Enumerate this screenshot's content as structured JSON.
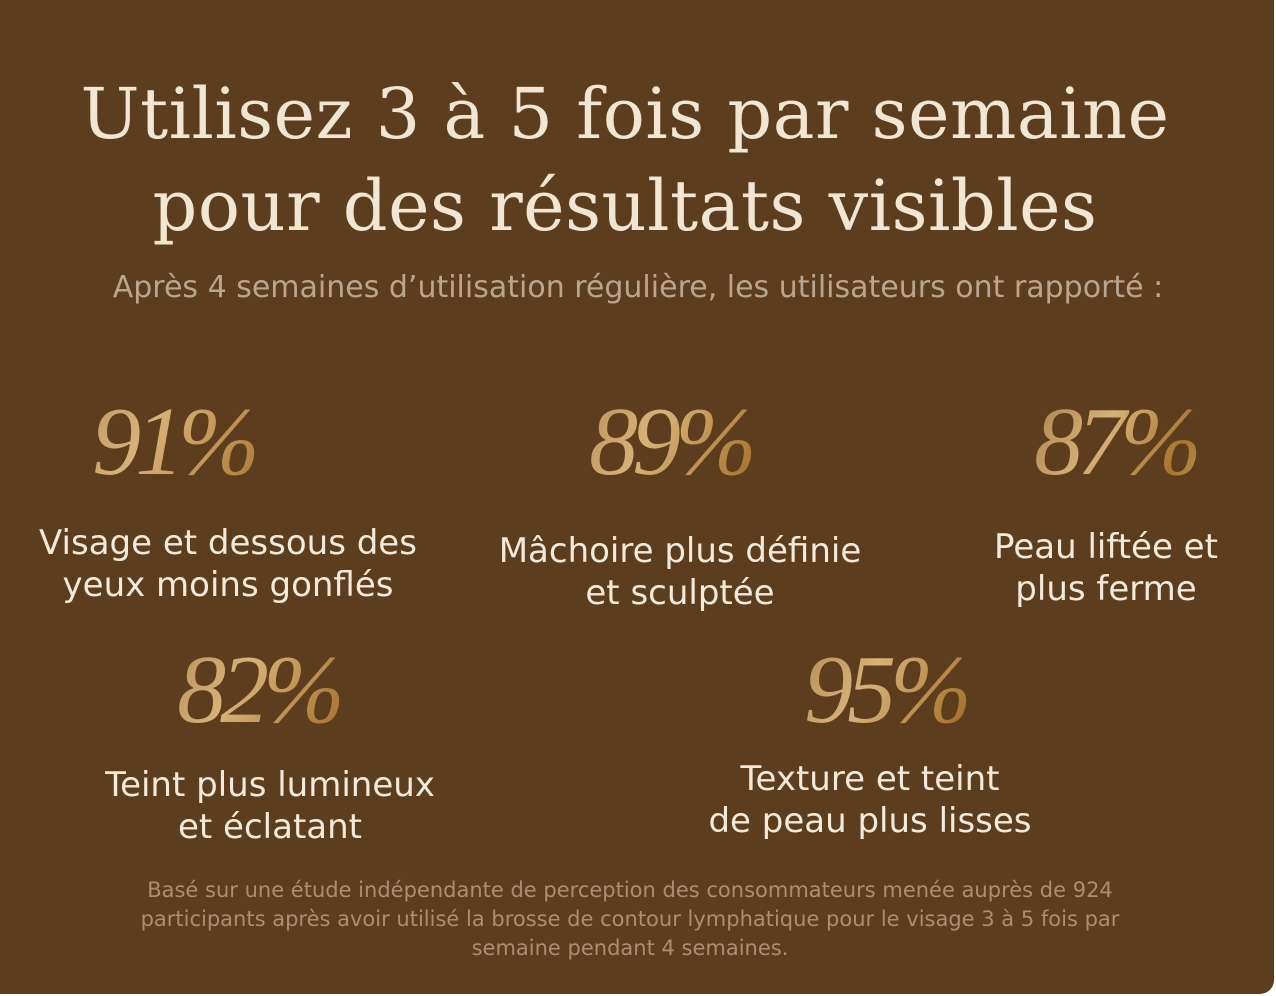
{
  "title_line1": "Utilisez 3 à 5 fois par semaine",
  "title_line2": "pour des résultats visibles",
  "subtitle": "Après 4 semaines d’utilisation régulière, les utilisateurs ont rapporté :",
  "stats": [
    {
      "percent": "91%",
      "value": 91,
      "label_line1": "Visage et dessous des",
      "label_line2": "yeux moins gonflés"
    },
    {
      "percent": "89%",
      "value": 89,
      "label_line1": "Mâchoire plus définie",
      "label_line2": "et sculptée"
    },
    {
      "percent": "87%",
      "value": 87,
      "label_line1": "Peau liftée et",
      "label_line2": "plus ferme"
    },
    {
      "percent": "82%",
      "value": 82,
      "label_line1": "Teint plus lumineux",
      "label_line2": "et éclatant"
    },
    {
      "percent": "95%",
      "value": 95,
      "label_line1": "Texture et teint",
      "label_line2": "de peau plus lisses"
    }
  ],
  "footnote": {
    "line1": "Basé sur une étude indépendante de perception des consommateurs menée auprès de 924",
    "line2": "participants après avoir utilisé la brosse de contour lymphatique pour le visage 3 à 5 fois par",
    "line3": "semaine pendant 4 semaines."
  },
  "colors": {
    "background": "#5c3d1e",
    "title": "#f1e6d3",
    "gold": "#d7b278",
    "footnote": "#a88f73"
  }
}
